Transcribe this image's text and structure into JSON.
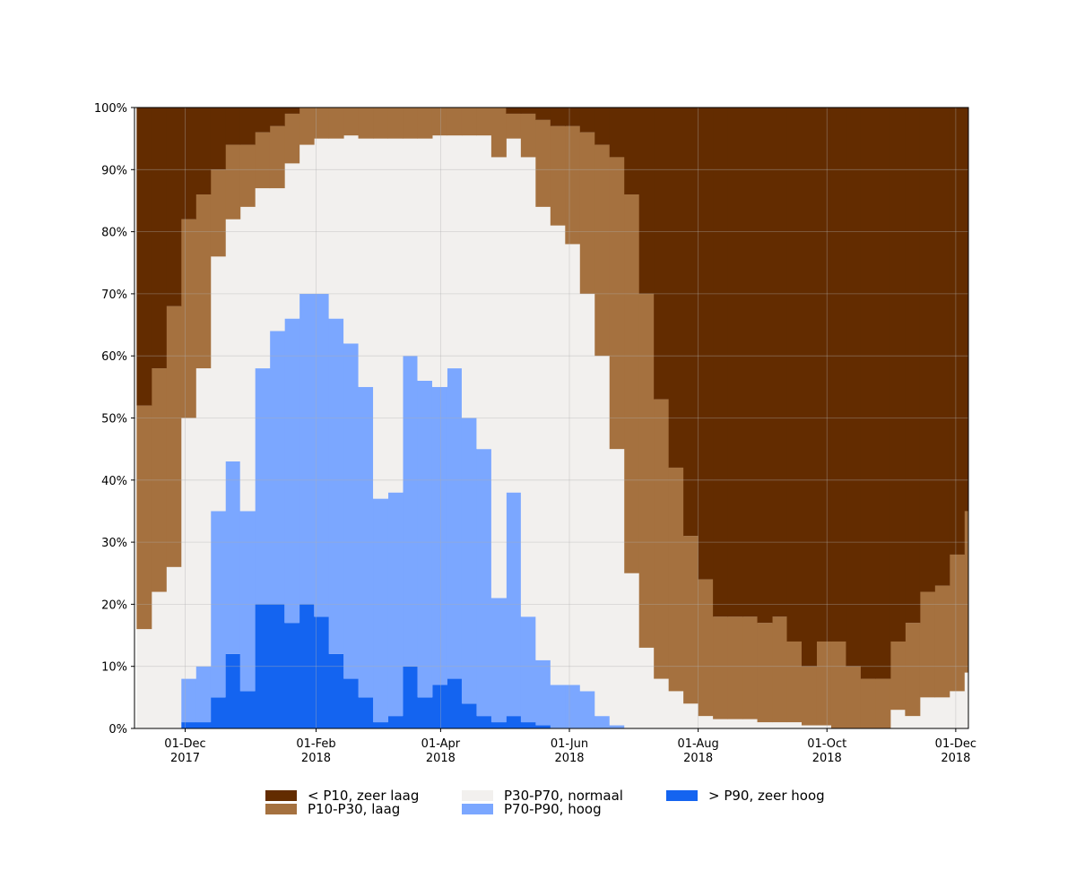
{
  "chart_data": {
    "type": "stacked-bar",
    "x": [
      "2017-11-08",
      "2017-11-15",
      "2017-11-22",
      "2017-11-29",
      "2017-12-06",
      "2017-12-13",
      "2017-12-20",
      "2017-12-27",
      "2018-01-03",
      "2018-01-10",
      "2018-01-17",
      "2018-01-24",
      "2018-01-31",
      "2018-02-07",
      "2018-02-14",
      "2018-02-21",
      "2018-02-28",
      "2018-03-07",
      "2018-03-14",
      "2018-03-21",
      "2018-03-28",
      "2018-04-04",
      "2018-04-11",
      "2018-04-18",
      "2018-04-25",
      "2018-05-02",
      "2018-05-09",
      "2018-05-16",
      "2018-05-23",
      "2018-05-30",
      "2018-06-06",
      "2018-06-13",
      "2018-06-20",
      "2018-06-27",
      "2018-07-04",
      "2018-07-11",
      "2018-07-18",
      "2018-07-25",
      "2018-08-01",
      "2018-08-08",
      "2018-08-15",
      "2018-08-22",
      "2018-08-29",
      "2018-09-05",
      "2018-09-12",
      "2018-09-19",
      "2018-09-26",
      "2018-10-03",
      "2018-10-10",
      "2018-10-17",
      "2018-10-24",
      "2018-10-31",
      "2018-11-07",
      "2018-11-14",
      "2018-11-21",
      "2018-11-28",
      "2018-12-05"
    ],
    "series": [
      {
        "name": "< P10, zeer laag",
        "color": "#632c00",
        "values": [
          48,
          42,
          32,
          18,
          14,
          10,
          6,
          6,
          4,
          3,
          1,
          0,
          0,
          0,
          0,
          0,
          0,
          0,
          0,
          0,
          0,
          0,
          0,
          0,
          0,
          1,
          1,
          2,
          3,
          3,
          4,
          6,
          8,
          14,
          30,
          47,
          58,
          69,
          76,
          82,
          82,
          82,
          83,
          82,
          86,
          90,
          86,
          86,
          90,
          92,
          92,
          86,
          83,
          78,
          77,
          72,
          65
        ]
      },
      {
        "name": "P10-P30, laag",
        "color": "#a5713f",
        "values": [
          36,
          36,
          42,
          32,
          28,
          14,
          12,
          10,
          9,
          10,
          8,
          6,
          5,
          5,
          4.5,
          5,
          5,
          5,
          5,
          5,
          4.5,
          4.5,
          4.5,
          4.5,
          8,
          4,
          7,
          14,
          16,
          19,
          26,
          34,
          47,
          61,
          57,
          45,
          36,
          27,
          22,
          16.5,
          16.5,
          16.5,
          16,
          17,
          13,
          9.5,
          13.5,
          14,
          10,
          8,
          8,
          11,
          15,
          17,
          18,
          22,
          26
        ]
      },
      {
        "name": "P30-P70, normaal",
        "color": "#f2f0ee",
        "values": [
          16,
          22,
          26,
          42,
          48,
          41,
          39,
          49,
          29,
          23,
          25,
          24,
          25,
          29,
          33.5,
          40,
          58,
          57,
          35,
          39,
          40.5,
          37.5,
          45.5,
          50.5,
          71,
          57,
          74,
          73,
          74,
          71,
          64,
          58,
          44.5,
          25,
          13,
          8,
          6,
          4,
          2,
          1.5,
          1.5,
          1.5,
          1,
          1,
          1,
          0.5,
          0.5,
          0,
          0,
          0,
          0,
          3,
          2,
          5,
          5,
          6,
          9
        ]
      },
      {
        "name": "P70-P90, hoog",
        "color": "#7ba7ff",
        "values": [
          0,
          0,
          0,
          7,
          9,
          30,
          31,
          29,
          38,
          44,
          49,
          50,
          52,
          54,
          54,
          50,
          36,
          36,
          50,
          51,
          48,
          50,
          46,
          43,
          20,
          36,
          17,
          10.5,
          7,
          7,
          6,
          2,
          0.5,
          0,
          0,
          0,
          0,
          0,
          0,
          0,
          0,
          0,
          0,
          0,
          0,
          0,
          0,
          0,
          0,
          0,
          0,
          0,
          0,
          0,
          0,
          0,
          0
        ]
      },
      {
        "name": "> P90, zeer hoog",
        "color": "#1464f0",
        "values": [
          0,
          0,
          0,
          1,
          1,
          5,
          12,
          6,
          20,
          20,
          17,
          20,
          18,
          12,
          8,
          5,
          1,
          2,
          10,
          5,
          7,
          8,
          4,
          2,
          1,
          2,
          1,
          0.5,
          0,
          0,
          0,
          0,
          0,
          0,
          0,
          0,
          0,
          0,
          0,
          0,
          0,
          0,
          0,
          0,
          0,
          0,
          0,
          0,
          0,
          0,
          0,
          0,
          0,
          0,
          0,
          0,
          0
        ]
      }
    ],
    "xlim": [
      "2017-11-07",
      "2018-12-07"
    ],
    "xticks": [
      {
        "value": "2017-12-01",
        "label": "01-Dec\n2017"
      },
      {
        "value": "2018-02-01",
        "label": "01-Feb\n2018"
      },
      {
        "value": "2018-04-01",
        "label": "01-Apr\n2018"
      },
      {
        "value": "2018-06-01",
        "label": "01-Jun\n2018"
      },
      {
        "value": "2018-08-01",
        "label": "01-Aug\n2018"
      },
      {
        "value": "2018-10-01",
        "label": "01-Oct\n2018"
      },
      {
        "value": "2018-12-01",
        "label": "01-Dec\n2018"
      }
    ],
    "ylim": [
      0,
      100
    ],
    "yticks": [
      {
        "value": 0,
        "label": "0%"
      },
      {
        "value": 10,
        "label": "10%"
      },
      {
        "value": 20,
        "label": "20%"
      },
      {
        "value": 30,
        "label": "30%"
      },
      {
        "value": 40,
        "label": "40%"
      },
      {
        "value": 50,
        "label": "50%"
      },
      {
        "value": 60,
        "label": "60%"
      },
      {
        "value": 70,
        "label": "70%"
      },
      {
        "value": 80,
        "label": "80%"
      },
      {
        "value": 90,
        "label": "90%"
      },
      {
        "value": 100,
        "label": "100%"
      }
    ],
    "grid": true,
    "legend": "bottom"
  }
}
